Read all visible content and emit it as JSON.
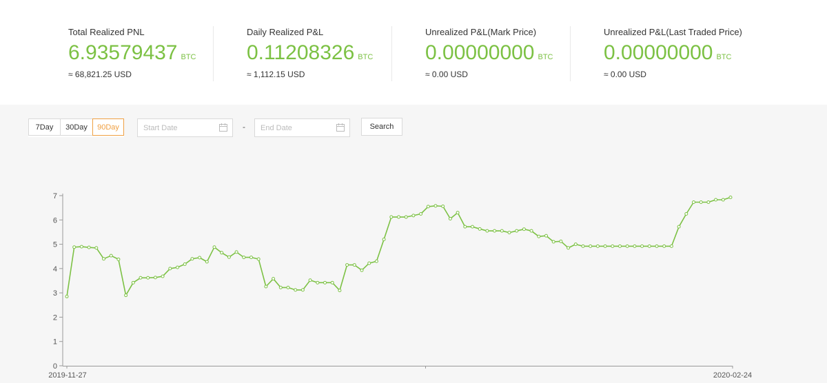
{
  "stats": [
    {
      "label": "Total Realized PNL",
      "value": "6.93579437",
      "unit": "BTC",
      "usd": "≈ 68,821.25 USD"
    },
    {
      "label": "Daily Realized P&L",
      "value": "0.11208326",
      "unit": "BTC",
      "usd": "≈ 1,112.15 USD"
    },
    {
      "label": "Unrealized P&L(Mark Price)",
      "value": "0.00000000",
      "unit": "BTC",
      "usd": "≈ 0.00 USD"
    },
    {
      "label": "Unrealized P&L(Last Traded Price)",
      "value": "0.00000000",
      "unit": "BTC",
      "usd": "≈ 0.00 USD"
    }
  ],
  "filters": {
    "periods": [
      "7Day",
      "30Day",
      "90Day"
    ],
    "active_period": "90Day",
    "start_placeholder": "Start Date",
    "end_placeholder": "End Date",
    "separator": "-",
    "search_label": "Search"
  },
  "colors": {
    "accent": "#7cc144",
    "active_period": "#f0a042"
  },
  "icons": {
    "date_picker": "calendar-icon"
  },
  "chart_data": {
    "type": "line",
    "title": "",
    "xlabel": "",
    "ylabel": "",
    "x_start": "2019-11-27",
    "x_end": "2020-02-24",
    "x_tick_labels": [
      "2019-11-27",
      "2020-02-24"
    ],
    "ylim": [
      0,
      7
    ],
    "yticks": [
      "0",
      "1",
      "2",
      "3",
      "4",
      "5",
      "6",
      "7"
    ],
    "grid": false,
    "legend": "none",
    "color": "#7cc144",
    "values": [
      2.85,
      4.88,
      4.9,
      4.87,
      4.85,
      4.4,
      4.53,
      4.38,
      2.9,
      3.42,
      3.62,
      3.62,
      3.63,
      3.68,
      4.0,
      4.05,
      4.18,
      4.4,
      4.45,
      4.28,
      4.88,
      4.65,
      4.47,
      4.68,
      4.46,
      4.46,
      4.39,
      3.26,
      3.58,
      3.22,
      3.22,
      3.12,
      3.12,
      3.52,
      3.42,
      3.42,
      3.42,
      3.1,
      4.15,
      4.15,
      3.93,
      4.22,
      4.3,
      5.2,
      6.12,
      6.12,
      6.12,
      6.18,
      6.25,
      6.55,
      6.58,
      6.56,
      6.05,
      6.3,
      5.72,
      5.72,
      5.63,
      5.55,
      5.55,
      5.55,
      5.48,
      5.55,
      5.62,
      5.55,
      5.32,
      5.35,
      5.1,
      5.12,
      4.85,
      5.0,
      4.92,
      4.92,
      4.92,
      4.92,
      4.92,
      4.92,
      4.92,
      4.92,
      4.92,
      4.92,
      4.92,
      4.92,
      4.92,
      5.72,
      6.25,
      6.73,
      6.73,
      6.73,
      6.83,
      6.83,
      6.93
    ]
  }
}
